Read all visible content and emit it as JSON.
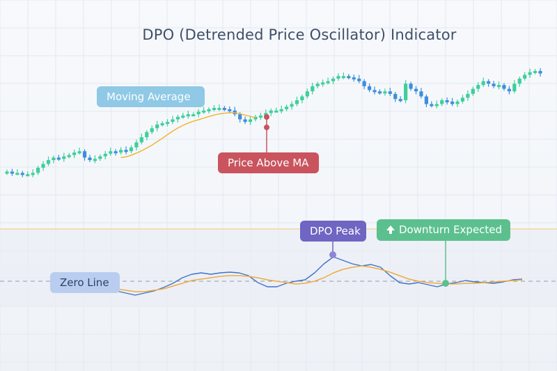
{
  "chart_data": [
    {
      "type": "candlestick",
      "title": "DPO (Detrended Price Oscillator) Indicator",
      "xlabel": "",
      "ylabel": "",
      "grid": true,
      "ylim": [
        0,
        100
      ],
      "close": [
        9,
        8,
        8,
        7,
        7,
        8,
        12,
        15,
        18,
        20,
        19,
        21,
        22,
        24,
        25,
        20,
        18,
        19,
        21,
        23,
        25,
        24,
        26,
        25,
        28,
        32,
        36,
        40,
        43,
        46,
        47,
        48,
        50,
        52,
        53,
        54,
        54,
        56,
        57,
        58,
        59,
        59,
        58,
        57,
        54,
        50,
        48,
        50,
        52,
        53,
        55,
        57,
        57,
        58,
        60,
        62,
        65,
        68,
        72,
        76,
        78,
        79,
        80,
        82,
        84,
        84,
        83,
        82,
        80,
        76,
        73,
        72,
        71,
        72,
        70,
        66,
        65,
        78,
        74,
        72,
        68,
        62,
        61,
        62,
        65,
        64,
        62,
        64,
        67,
        70,
        74,
        77,
        80,
        78,
        76,
        77,
        74,
        72,
        78,
        82,
        85,
        87,
        88,
        86
      ]
    },
    {
      "type": "line",
      "ylim": [
        -40,
        40
      ],
      "zero_line": 0,
      "x": [
        0,
        2,
        4,
        6,
        8,
        10,
        12,
        14,
        16,
        18,
        20,
        22,
        24,
        26,
        28,
        30,
        32,
        34,
        36,
        38,
        40,
        42,
        44,
        46,
        48,
        50,
        52,
        54,
        56,
        58,
        60,
        62,
        64,
        66,
        68,
        70,
        72,
        74,
        76,
        78,
        80,
        82,
        84,
        86,
        88,
        90
      ],
      "series": [
        {
          "color": "#3f72c8",
          "values": [
            -5,
            -9,
            -14,
            -17,
            -20,
            -17,
            -14,
            -9,
            -3,
            5,
            10,
            12,
            10,
            12,
            13,
            12,
            8,
            -2,
            -8,
            -8,
            -3,
            0,
            2,
            12,
            25,
            35,
            30,
            25,
            22,
            24,
            20,
            8,
            -2,
            -4,
            -2,
            -5,
            -8,
            -4,
            -2,
            1,
            -1,
            -2,
            -3,
            -1,
            2,
            3
          ]
        },
        {
          "color": "#f0ab3e",
          "values": [
            -6,
            -8,
            -11,
            -13,
            -15,
            -15,
            -13,
            -11,
            -7,
            -3,
            1,
            3,
            5,
            7,
            8,
            8,
            7,
            5,
            2,
            0,
            -2,
            -4,
            -3,
            0,
            5,
            12,
            17,
            20,
            22,
            20,
            17,
            13,
            8,
            3,
            0,
            -2,
            -3,
            -4,
            -4,
            -3,
            -3,
            -2,
            -1,
            0,
            1,
            2
          ]
        }
      ]
    }
  ],
  "annotations": {
    "moving_average": "Moving Average",
    "price_above_ma": "Price Above MA",
    "dpo_peak": "DPO Peak",
    "downturn_expected": "Downturn Expected",
    "zero_line": "Zero Line"
  },
  "colors": {
    "bull": "#3ecf9b",
    "bear": "#3d8ede",
    "ma": "#f2b534",
    "price_marker": "#c9545e",
    "peak": "#6f65c2",
    "downturn": "#5cc08e"
  }
}
